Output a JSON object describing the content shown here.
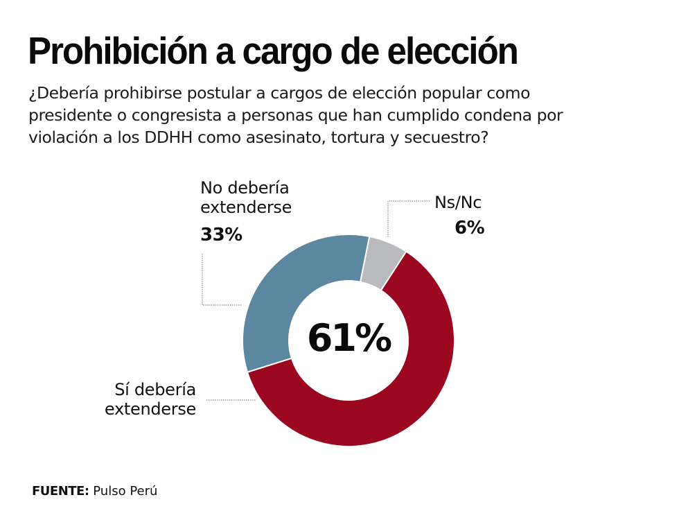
{
  "header": {
    "title": "Prohibición a cargo de elección",
    "subtitle": "¿Debería  prohibirse postular a cargos de elección popular como\npresidente o congresista a personas que han cumplido condena por\nviolación a los DDHH como asesinato, tortura y secuestro?"
  },
  "chart_data": {
    "type": "pie",
    "variant": "donut",
    "title": "Prohibición a cargo de elección",
    "center_label": "61%",
    "start_angle_deg": 11.4,
    "direction": "clockwise",
    "slices": [
      {
        "name": "Ns/Nc",
        "label": "Ns/Nc",
        "value": 6,
        "value_label": "6%",
        "color": "#b9babd"
      },
      {
        "name": "Sí debería extenderse",
        "label": "Sí debería\nextenderse",
        "value": 61,
        "value_label": "61%",
        "color": "#9c0720"
      },
      {
        "name": "No debería extenderse",
        "label": "No debería\nextenderse",
        "value": 33,
        "value_label": "33%",
        "color": "#5b87a0"
      }
    ],
    "unit": "%"
  },
  "footer": {
    "source_key": "FUENTE:",
    "source_value": " Pulso Perú"
  }
}
